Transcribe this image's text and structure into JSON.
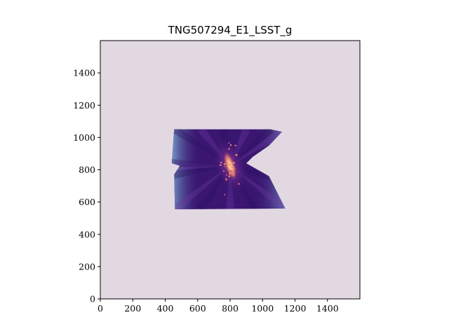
{
  "chart_data": {
    "type": "heatmap",
    "title": "TNG507294_E1_LSST_g",
    "xlabel": "",
    "ylabel": "",
    "xlim": [
      0,
      1600
    ],
    "ylim": [
      0,
      1600
    ],
    "x_ticks": [
      0,
      200,
      400,
      600,
      800,
      1000,
      1200,
      1400
    ],
    "y_ticks": [
      0,
      200,
      400,
      600,
      800,
      1000,
      1200,
      1400
    ],
    "grid": false,
    "colors": {
      "background": "#e2d8e2",
      "galaxy_dark": "#3a1670",
      "galaxy_mid": "#5a2a90",
      "edge_blue": "#6a9bc8",
      "core": "#f0c090"
    },
    "galaxy_region": {
      "polygon": [
        [
          455,
          1050
        ],
        [
          1050,
          1050
        ],
        [
          1120,
          1035
        ],
        [
          1040,
          950
        ],
        [
          940,
          880
        ],
        [
          900,
          840
        ],
        [
          1040,
          760
        ],
        [
          1140,
          560
        ],
        [
          460,
          555
        ],
        [
          455,
          770
        ],
        [
          490,
          825
        ],
        [
          440,
          840
        ],
        [
          455,
          1050
        ]
      ],
      "core": {
        "cx": 800,
        "cy": 825,
        "rx": 32,
        "ry": 95,
        "angle_deg": -18
      }
    }
  }
}
